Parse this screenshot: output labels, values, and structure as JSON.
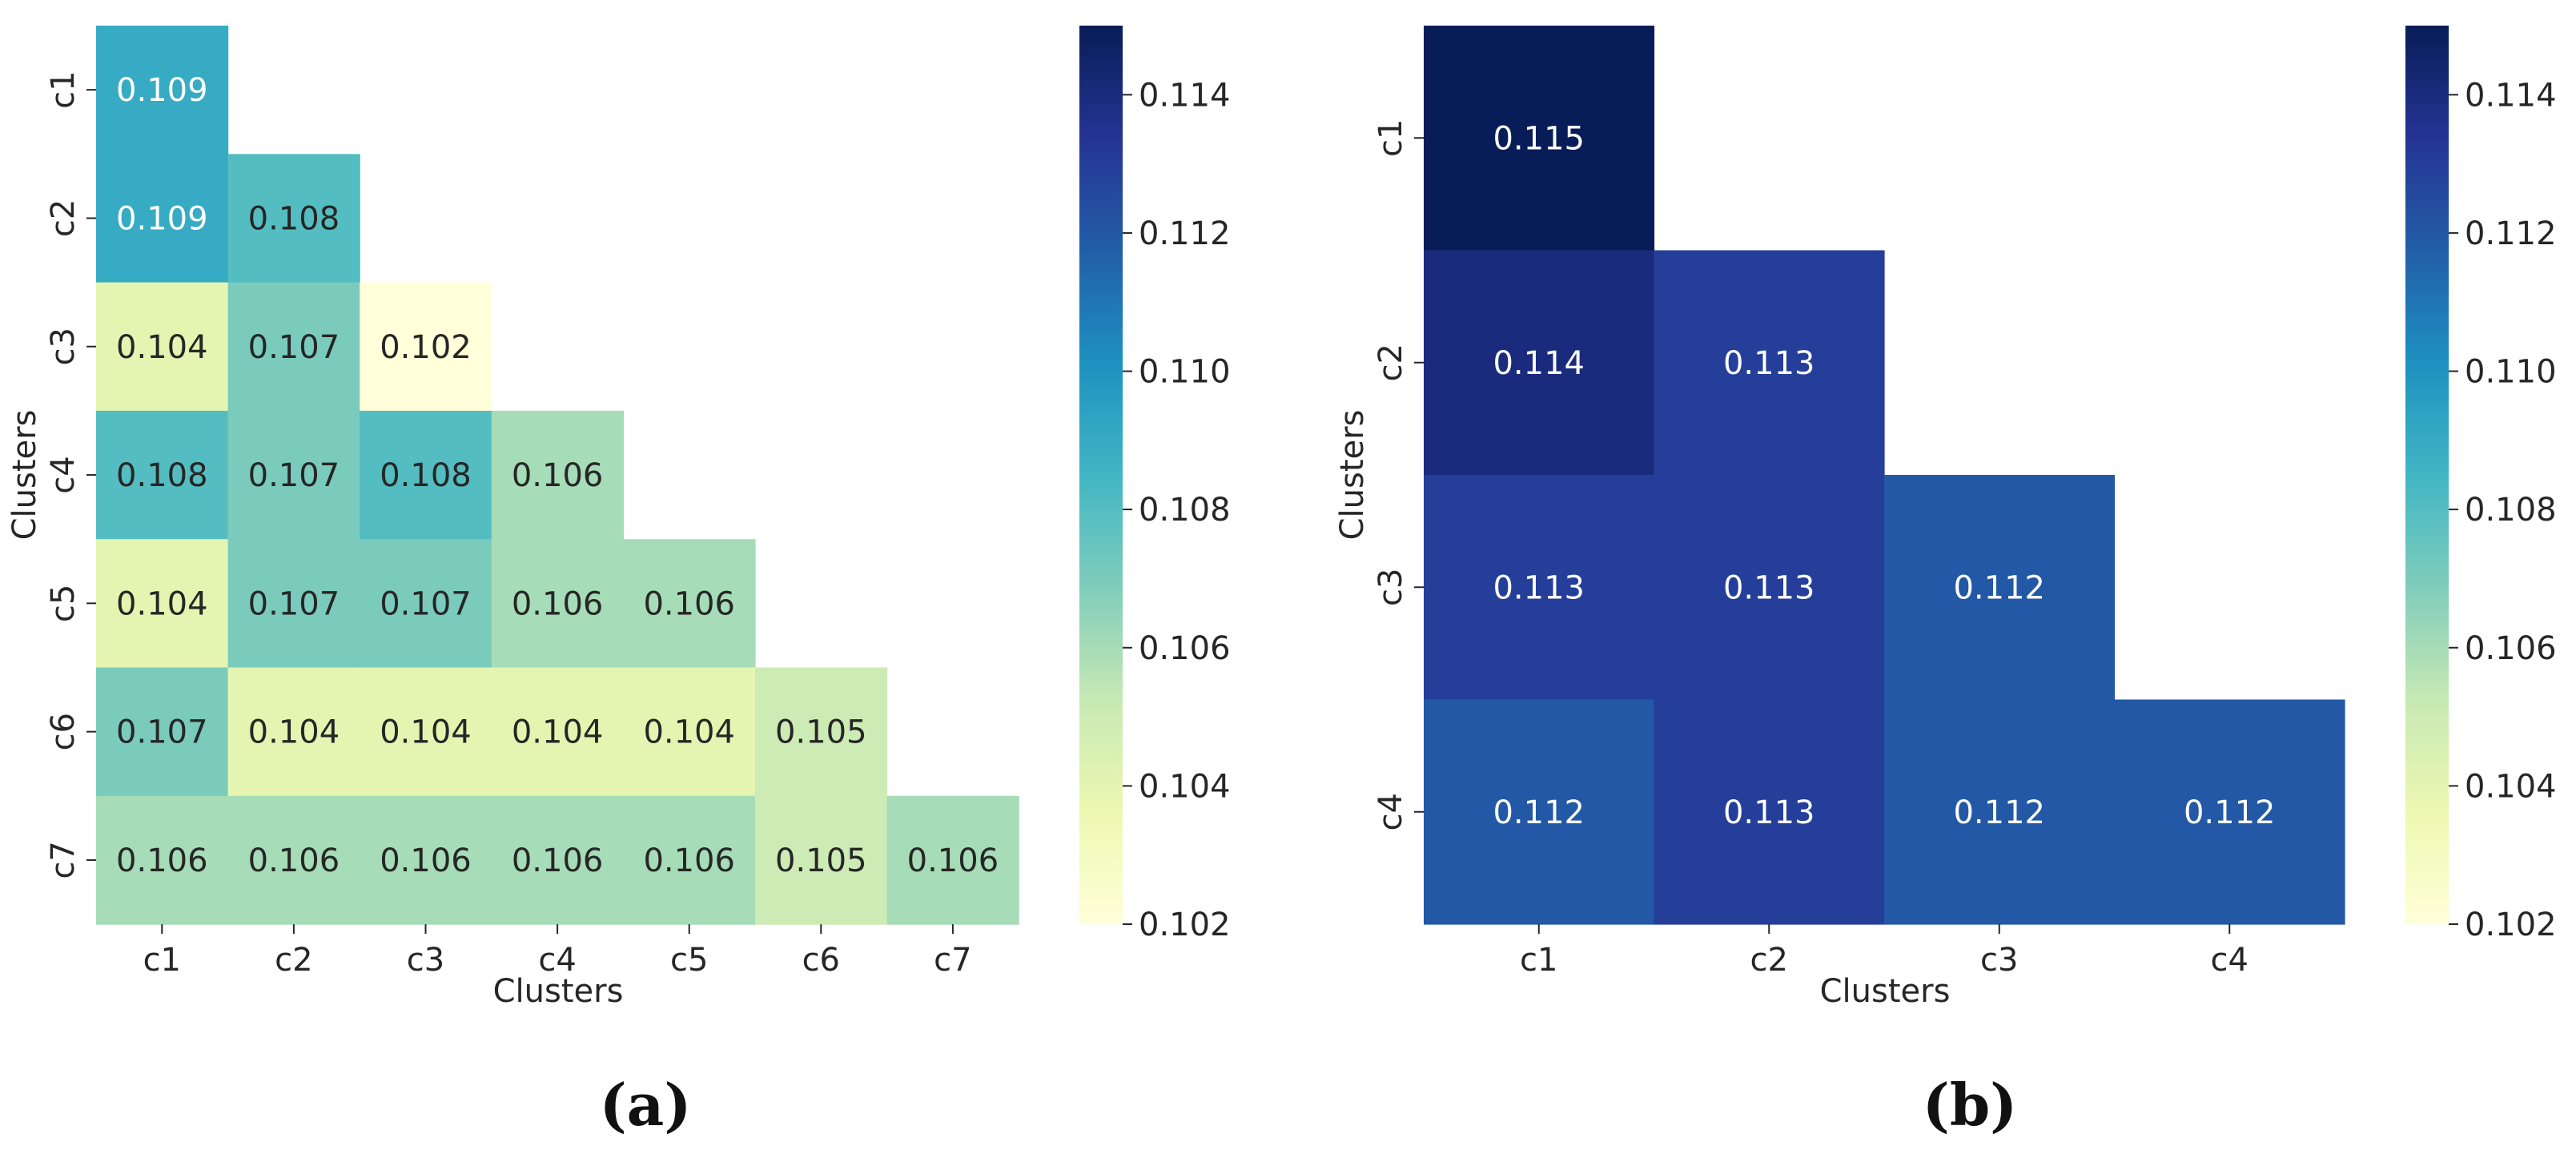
{
  "chart_data": [
    {
      "type": "heatmap",
      "panel": "(a)",
      "title": "",
      "xlabel": "Clusters",
      "ylabel": "Clusters",
      "categories": [
        "c1",
        "c2",
        "c3",
        "c4",
        "c5",
        "c6",
        "c7"
      ],
      "mask": "upper-triangle",
      "values": [
        [
          0.109
        ],
        [
          0.109,
          0.108
        ],
        [
          0.104,
          0.107,
          0.102
        ],
        [
          0.108,
          0.107,
          0.108,
          0.106
        ],
        [
          0.104,
          0.107,
          0.107,
          0.106,
          0.106
        ],
        [
          0.107,
          0.104,
          0.104,
          0.104,
          0.104,
          0.105
        ],
        [
          0.106,
          0.106,
          0.106,
          0.106,
          0.106,
          0.105,
          0.106
        ]
      ],
      "colormap": "YlGnBu",
      "vlim": [
        0.102,
        0.115
      ],
      "colorbar_ticks": [
        "0.102",
        "0.104",
        "0.106",
        "0.108",
        "0.110",
        "0.112",
        "0.114"
      ]
    },
    {
      "type": "heatmap",
      "panel": "(b)",
      "title": "",
      "xlabel": "Clusters",
      "ylabel": "Clusters",
      "categories": [
        "c1",
        "c2",
        "c3",
        "c4"
      ],
      "mask": "upper-triangle",
      "values": [
        [
          0.115
        ],
        [
          0.114,
          0.113
        ],
        [
          0.113,
          0.113,
          0.112
        ],
        [
          0.112,
          0.113,
          0.112,
          0.112
        ]
      ],
      "colormap": "YlGnBu",
      "vlim": [
        0.102,
        0.115
      ],
      "colorbar_ticks": [
        "0.102",
        "0.104",
        "0.106",
        "0.108",
        "0.110",
        "0.112",
        "0.114"
      ]
    }
  ],
  "colors": {
    "colormap_stops": [
      "#ffffd9",
      "#edf8b1",
      "#c7e9b4",
      "#7fcdbb",
      "#41b6c4",
      "#1d91c0",
      "#225ea8",
      "#253494",
      "#081d58"
    ],
    "text_dark": "#262626",
    "text_light": "#ffffff"
  },
  "captions": [
    "(a)",
    "(b)"
  ]
}
